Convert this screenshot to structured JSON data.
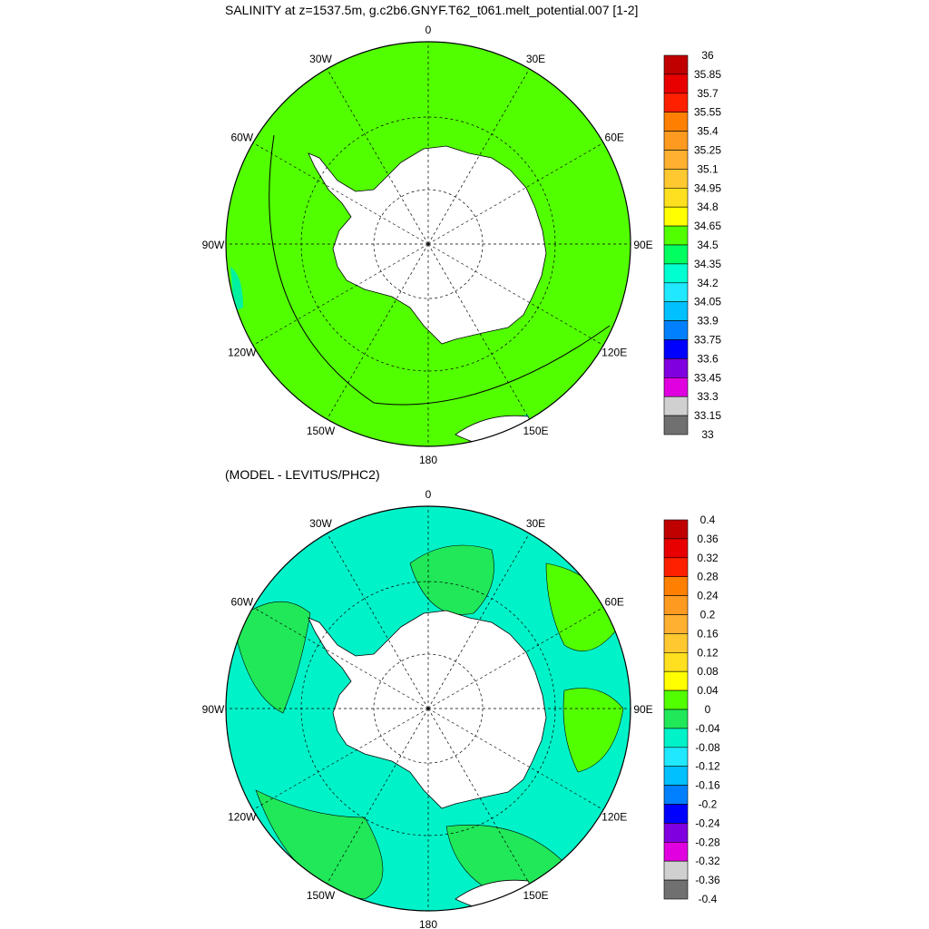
{
  "plots": [
    {
      "title": "SALINITY at z=1537.5m, g.c2b6.GNYF.T62_t061.melt_potential.007 [1-2]",
      "longitude_labels": [
        "0",
        "30E",
        "60E",
        "90E",
        "120E",
        "150E",
        "180",
        "150W",
        "120W",
        "90W",
        "60W",
        "30W"
      ],
      "fill_map": {
        "ocean_color": "#52ff00",
        "patches": [
          {
            "region": "far southeast Pacific / south of NZ edge",
            "color": "#00ffd0"
          },
          {
            "region": "southeast Pacific edge near 95W",
            "color": "#00f2a0"
          }
        ],
        "land_color": "#ffffff"
      },
      "colorbar": {
        "labels": [
          "36",
          "35.85",
          "35.7",
          "35.55",
          "35.4",
          "35.25",
          "35.1",
          "34.95",
          "34.8",
          "34.65",
          "34.5",
          "34.35",
          "34.2",
          "34.05",
          "33.9",
          "33.75",
          "33.6",
          "33.45",
          "33.3",
          "33.15",
          "33"
        ],
        "colors": [
          "#c00000",
          "#e80000",
          "#ff2000",
          "#ff8000",
          "#ff9a20",
          "#ffb030",
          "#ffc830",
          "#ffe020",
          "#ffff00",
          "#52ff00",
          "#00ff60",
          "#00ffd0",
          "#20e8ff",
          "#00c0ff",
          "#0080ff",
          "#0000ff",
          "#8000e0",
          "#e000e0",
          "#d0d0d0",
          "#707070"
        ]
      }
    },
    {
      "title": "(MODEL - LEVITUS/PHC2)",
      "longitude_labels": [
        "0",
        "30E",
        "60E",
        "90E",
        "120E",
        "150E",
        "180",
        "150W",
        "120W",
        "90W",
        "60W",
        "30W"
      ],
      "fill_map": {
        "ocean_color": "#00f2c8",
        "patches": [
          {
            "region": "south of Africa / Weddell",
            "color": "#20e858"
          },
          {
            "region": "Indian sector",
            "color": "#52ff00"
          },
          {
            "region": "Pacific sector",
            "color": "#20e858"
          }
        ],
        "land_color": "#ffffff"
      },
      "colorbar": {
        "labels": [
          "0.4",
          "0.36",
          "0.32",
          "0.28",
          "0.24",
          "0.2",
          "0.16",
          "0.12",
          "0.08",
          "0.04",
          "0",
          "-0.04",
          "-0.08",
          "-0.12",
          "-0.16",
          "-0.2",
          "-0.24",
          "-0.28",
          "-0.32",
          "-0.36",
          "-0.4"
        ],
        "colors": [
          "#c00000",
          "#e80000",
          "#ff2000",
          "#ff8000",
          "#ff9a20",
          "#ffb030",
          "#ffc830",
          "#ffe020",
          "#ffff00",
          "#52ff00",
          "#20e858",
          "#00f2c8",
          "#20e8ff",
          "#00c0ff",
          "#0080ff",
          "#0000ff",
          "#8000e0",
          "#e000e0",
          "#d0d0d0",
          "#707070"
        ]
      }
    }
  ]
}
